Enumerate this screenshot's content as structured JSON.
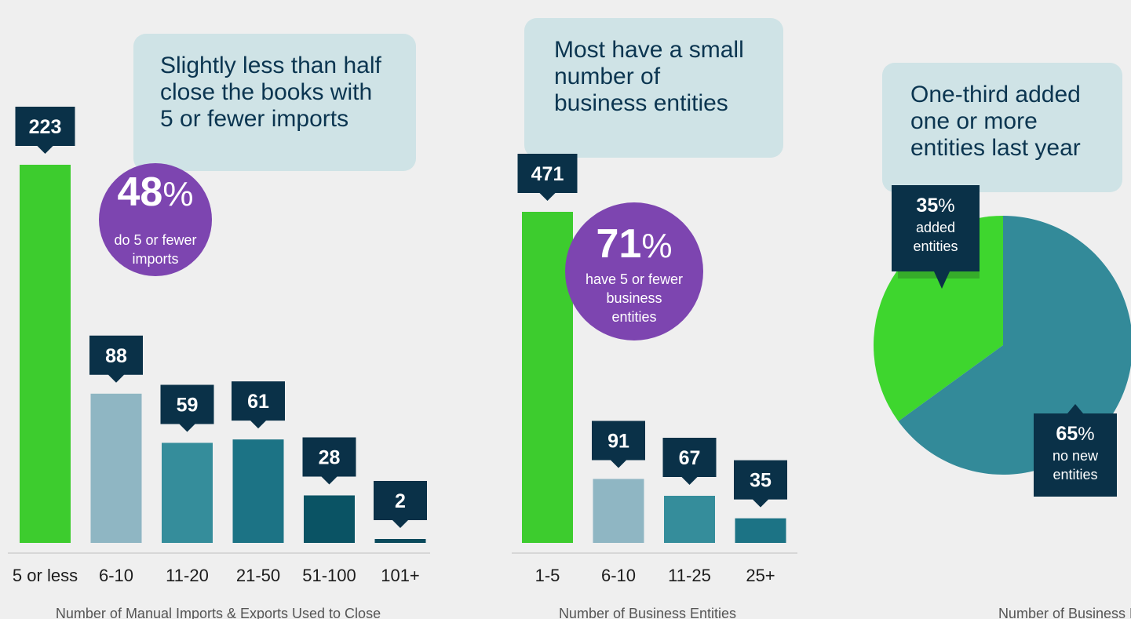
{
  "chart_data": [
    {
      "type": "bar",
      "categories": [
        "5 or less",
        "6-10",
        "11-20",
        "21-50",
        "51-100",
        "101+"
      ],
      "values": [
        223,
        88,
        59,
        61,
        28,
        2
      ],
      "colors": [
        "#3dcc2e",
        "#8fb6c3",
        "#358d9b",
        "#1c7385",
        "#0a5364",
        "#0a4a5c"
      ],
      "xlabel": "Number of Manual Imports & Exports Used to Close",
      "callout": [
        "Slightly less than half",
        "close the books with",
        "5 or fewer imports"
      ],
      "highlight": {
        "percent": "48",
        "percent_sign": "%",
        "lines": [
          "do 5 or fewer",
          "imports"
        ]
      },
      "ylim": [
        0,
        223
      ]
    },
    {
      "type": "bar",
      "categories": [
        "1-5",
        "6-10",
        "11-25",
        "25+"
      ],
      "values": [
        471,
        91,
        67,
        35
      ],
      "colors": [
        "#3dcc2e",
        "#8fb6c3",
        "#358d9b",
        "#1c7385"
      ],
      "xlabel": "Number of Business Entities",
      "callout": [
        "Most have a small",
        "number of",
        "business entities"
      ],
      "highlight": {
        "percent": "71",
        "percent_sign": "%",
        "lines": [
          "have 5 or fewer",
          "business",
          "entities"
        ]
      },
      "ylim": [
        0,
        471
      ]
    },
    {
      "type": "pie",
      "slices": [
        {
          "value": 35,
          "pct": "35",
          "pct_sign": "%",
          "lines": [
            "added",
            "entities"
          ],
          "color": "#3ed62e"
        },
        {
          "value": 65,
          "pct": "65",
          "pct_sign": "%",
          "lines": [
            "no new",
            "entities"
          ],
          "color": "#338a99"
        }
      ],
      "xlabel": "Number of Business Entities",
      "callout": [
        "One-third added",
        "one or more",
        "entities last year"
      ]
    }
  ],
  "colors": {
    "background": "#efefef",
    "callout_bg": "#cfe3e6",
    "callout_text": "#0b3550",
    "label_bg": "#0a3148",
    "highlight_circle": "#7d45b0"
  }
}
